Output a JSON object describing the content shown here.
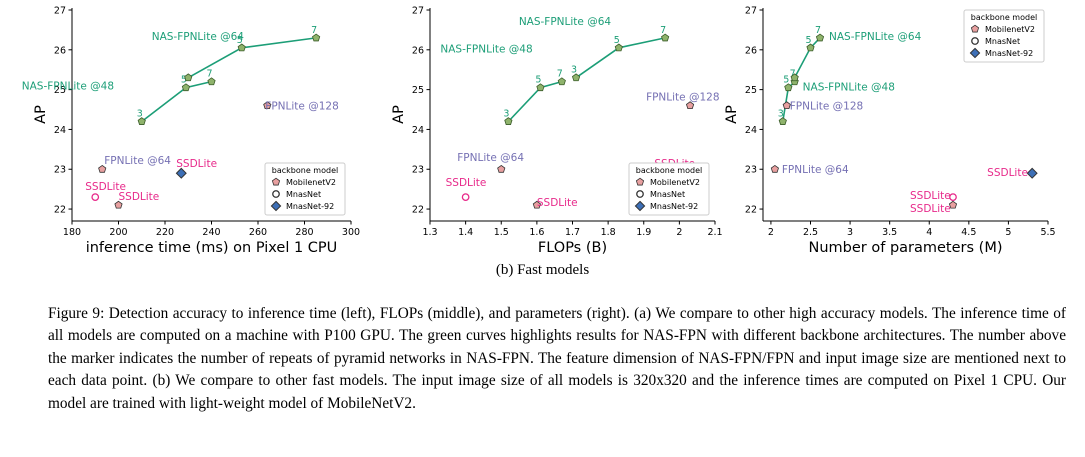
{
  "chart_data": [
    {
      "type": "scatter",
      "xlabel": "inference time (ms) on Pixel 1 CPU",
      "ylabel": "AP",
      "xlim": [
        180,
        300
      ],
      "ylim": [
        21.7,
        27.05
      ],
      "xticks": [
        180,
        200,
        220,
        240,
        260,
        280,
        300
      ],
      "yticks": [
        22,
        23,
        24,
        25,
        26,
        27
      ],
      "legend_position": "lower-right",
      "nasfpn_curves": [
        {
          "name": "NAS-FPNLite @48",
          "points": [
            {
              "x": 210,
              "y": 24.2,
              "r": "3"
            },
            {
              "x": 229,
              "y": 25.05,
              "r": "5"
            },
            {
              "x": 240,
              "y": 25.2,
              "r": "7"
            }
          ]
        },
        {
          "name": "NAS-FPNLite @64",
          "points": [
            {
              "x": 230,
              "y": 25.3,
              "r": ""
            },
            {
              "x": 253,
              "y": 26.05,
              "r": "5"
            },
            {
              "x": 285,
              "y": 26.3,
              "r": "7"
            }
          ]
        }
      ],
      "labeled_points": [
        {
          "label": "FPNLite @128",
          "x": 264,
          "y": 24.6,
          "marker": "pentagon"
        },
        {
          "label": "FPNLite @64",
          "x": 193,
          "y": 23.0,
          "marker": "pentagon"
        },
        {
          "label": "SSDLite",
          "x": 227,
          "y": 22.9,
          "marker": "diamond"
        },
        {
          "label": "SSDLite",
          "x": 190,
          "y": 22.3,
          "marker": "circle"
        },
        {
          "label": "SSDLite",
          "x": 200,
          "y": 22.1,
          "marker": "pentagon"
        }
      ]
    },
    {
      "type": "scatter",
      "xlabel": "FLOPs (B)",
      "ylabel": "AP",
      "xlim": [
        1.3,
        2.1
      ],
      "ylim": [
        21.7,
        27.05
      ],
      "xticks": [
        1.3,
        1.4,
        1.5,
        1.6,
        1.7,
        1.8,
        1.9,
        2.0,
        2.1
      ],
      "yticks": [
        22,
        23,
        24,
        25,
        26,
        27
      ],
      "legend_position": "lower-right",
      "nasfpn_curves": [
        {
          "name": "NAS-FPNLite @48",
          "points": [
            {
              "x": 1.52,
              "y": 24.2,
              "r": "3"
            },
            {
              "x": 1.61,
              "y": 25.05,
              "r": "5"
            },
            {
              "x": 1.67,
              "y": 25.2,
              "r": "7"
            }
          ]
        },
        {
          "name": "NAS-FPNLite @64",
          "points": [
            {
              "x": 1.71,
              "y": 25.3,
              "r": "3"
            },
            {
              "x": 1.83,
              "y": 26.05,
              "r": "5"
            },
            {
              "x": 1.96,
              "y": 26.3,
              "r": "7"
            }
          ]
        }
      ],
      "labeled_points": [
        {
          "label": "FPNLite @128",
          "x": 2.03,
          "y": 24.6,
          "marker": "pentagon"
        },
        {
          "label": "FPNLite @64",
          "x": 1.5,
          "y": 23.0,
          "marker": "pentagon"
        },
        {
          "label": "SSDLite",
          "x": 2.0,
          "y": 22.9,
          "marker": "diamond"
        },
        {
          "label": "SSDLite",
          "x": 1.4,
          "y": 22.3,
          "marker": "circle"
        },
        {
          "label": "SSDLite",
          "x": 1.6,
          "y": 22.1,
          "marker": "pentagon"
        }
      ]
    },
    {
      "type": "scatter",
      "xlabel": "Number of parameters (M)",
      "ylabel": "AP",
      "xlim": [
        1.9,
        5.5
      ],
      "ylim": [
        21.7,
        27.05
      ],
      "xticks": [
        2.0,
        2.5,
        3.0,
        3.5,
        4.0,
        4.5,
        5.0,
        5.5
      ],
      "yticks": [
        22,
        23,
        24,
        25,
        26,
        27
      ],
      "legend_position": "top-right",
      "nasfpn_curves": [
        {
          "name": "NAS-FPNLite @48",
          "points": [
            {
              "x": 2.15,
              "y": 24.2,
              "r": "3"
            },
            {
              "x": 2.22,
              "y": 25.05,
              "r": "5"
            },
            {
              "x": 2.3,
              "y": 25.2,
              "r": "7"
            }
          ]
        },
        {
          "name": "NAS-FPNLite @64",
          "points": [
            {
              "x": 2.3,
              "y": 25.3,
              "r": ""
            },
            {
              "x": 2.5,
              "y": 26.05,
              "r": "5"
            },
            {
              "x": 2.62,
              "y": 26.3,
              "r": "7"
            }
          ]
        }
      ],
      "labeled_points": [
        {
          "label": "FPNLite @128",
          "x": 2.2,
          "y": 24.6,
          "marker": "pentagon"
        },
        {
          "label": "FPNLite @64",
          "x": 2.05,
          "y": 23.0,
          "marker": "pentagon"
        },
        {
          "label": "SSDLite",
          "x": 5.3,
          "y": 22.9,
          "marker": "diamond"
        },
        {
          "label": "SSDLite",
          "x": 4.3,
          "y": 22.3,
          "marker": "circle"
        },
        {
          "label": "SSDLite",
          "x": 4.3,
          "y": 22.1,
          "marker": "pentagon"
        }
      ]
    }
  ],
  "legend": {
    "title": "backbone model",
    "items": [
      {
        "label": "MobilenetV2",
        "marker": "pentagon",
        "fill": "#e8a0a0",
        "stroke": "#333333"
      },
      {
        "label": "MnasNet",
        "marker": "circle",
        "fill": "#ffffff",
        "stroke": "#333333"
      },
      {
        "label": "MnasNet-92",
        "marker": "diamond",
        "fill": "#3d6fb6",
        "stroke": "#333333"
      }
    ]
  },
  "colors": {
    "nasfpn": "#1c9e77",
    "fpnlite": "#7570b3",
    "ssdlite": "#e7298a",
    "nasfpn_marker_fill": "#8fb36c"
  },
  "subcaption": "(b) Fast models",
  "caption": "Figure 9: Detection accuracy to inference time (left), FLOPs (middle), and parameters (right). (a) We compare to other high accuracy models. The inference time of all models are computed on a machine with P100 GPU. The green curves highlights results for NAS-FPN with different backbone architectures. The number above the marker indicates the number of repeats of pyramid networks in NAS-FPN. The feature dimension of NAS-FPN/FPN and input image size are mentioned next to each data point. (b) We compare to other fast models. The input image size of all models is 320x320 and the inference times are computed on Pixel 1 CPU. Our model are trained with light-weight model of MobileNetV2."
}
